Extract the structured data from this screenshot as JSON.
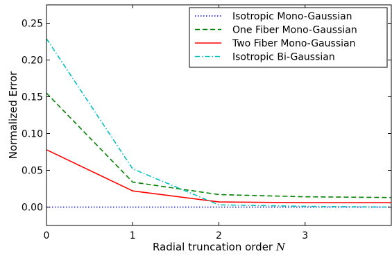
{
  "chart_data": {
    "type": "line",
    "title": "",
    "xlabel": "Radial truncation order",
    "xlabel_symbol": "N",
    "ylabel": "Normalized Error",
    "xlim": [
      0,
      4
    ],
    "ylim": [
      -0.025,
      0.275
    ],
    "x_ticks": [
      "0",
      "1",
      "2",
      "3"
    ],
    "y_ticks": [
      "0.00",
      "0.05",
      "0.10",
      "0.15",
      "0.20",
      "0.25"
    ],
    "x": [
      0,
      1,
      2,
      3,
      4
    ],
    "legend_position": "top-right",
    "grid": false,
    "series": [
      {
        "name": "Isotropic Mono-Gaussian",
        "color": "#0000ff",
        "dash": "dotted",
        "values": [
          0.0,
          0.0,
          0.0,
          0.0,
          0.0
        ]
      },
      {
        "name": "One Fiber Mono-Gaussian",
        "color": "#008000",
        "dash": "dashed",
        "values": [
          0.155,
          0.034,
          0.017,
          0.014,
          0.013
        ]
      },
      {
        "name": "Two Fiber Mono-Gaussian",
        "color": "#ff0000",
        "dash": "solid",
        "values": [
          0.078,
          0.022,
          0.007,
          0.006,
          0.006
        ]
      },
      {
        "name": "Isotropic Bi-Gaussian",
        "color": "#00bfbf",
        "dash": "dashdot",
        "values": [
          0.229,
          0.052,
          0.003,
          0.001,
          0.0
        ]
      }
    ]
  }
}
